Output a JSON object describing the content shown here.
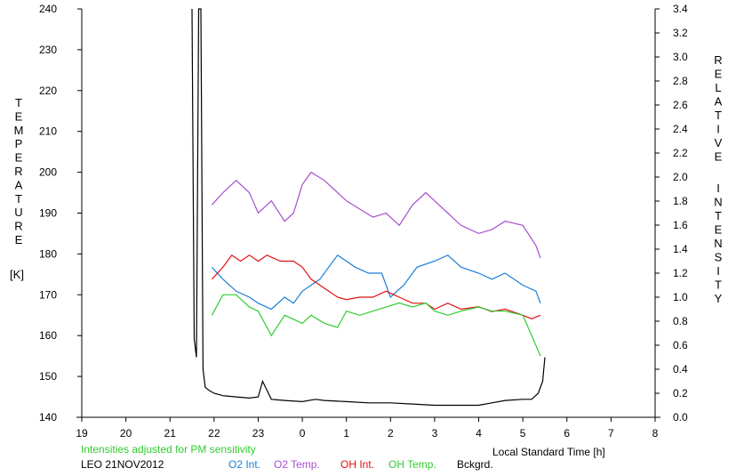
{
  "chart_data": {
    "type": "line",
    "left_axis": {
      "label_letters": [
        "T",
        "E",
        "M",
        "P",
        "E",
        "R",
        "A",
        "T",
        "U",
        "R",
        "E"
      ],
      "unit": "[K]",
      "range": [
        140,
        240
      ],
      "ticks": [
        "140",
        "150",
        "160",
        "170",
        "180",
        "190",
        "200",
        "210",
        "220",
        "230",
        "240"
      ]
    },
    "right_axis": {
      "label_letters": [
        "R",
        "E",
        "L",
        "A",
        "T",
        "I",
        "V",
        "E"
      ],
      "label_letters2": [
        "I",
        "N",
        "T",
        "E",
        "N",
        "S",
        "I",
        "T",
        "Y"
      ],
      "range": [
        0.0,
        3.4
      ],
      "ticks": [
        "0.0",
        "0.2",
        "0.4",
        "0.6",
        "0.8",
        "1.0",
        "1.2",
        "1.4",
        "1.6",
        "1.8",
        "2.0",
        "2.2",
        "2.4",
        "2.6",
        "2.8",
        "3.0",
        "3.2",
        "3.4"
      ]
    },
    "x_axis": {
      "label": "Local Standard Time [h]",
      "range": [
        19,
        32
      ],
      "ticks": [
        "19",
        "20",
        "21",
        "22",
        "23",
        "0",
        "1",
        "2",
        "3",
        "4",
        "5",
        "6",
        "7",
        "8"
      ]
    },
    "note": "Intensities adjusted for PM sensitivity",
    "station": "LEO 21NOV2012",
    "legend": [
      {
        "name": "O2 Int.",
        "color": "#1a7fd6"
      },
      {
        "name": "O2 Temp.",
        "color": "#a64fd0"
      },
      {
        "name": "OH Int.",
        "color": "#e01010"
      },
      {
        "name": "OH Temp.",
        "color": "#30cc30"
      },
      {
        "name": "Bckgrd.",
        "color": "#000000"
      }
    ],
    "series": [
      {
        "name": "O2 Int.",
        "axis": "right",
        "color": "#1a7fd6",
        "x": [
          21.95,
          22.2,
          22.5,
          22.8,
          23.0,
          23.3,
          23.6,
          23.8,
          24.0,
          24.2,
          24.4,
          24.6,
          24.8,
          25.0,
          25.2,
          25.5,
          25.8,
          26.0,
          26.3,
          26.6,
          27.0,
          27.3,
          27.6,
          28.0,
          28.3,
          28.6,
          29.0,
          29.3,
          29.4
        ],
        "y": [
          1.25,
          1.15,
          1.05,
          1.0,
          0.95,
          0.9,
          1.0,
          0.95,
          1.05,
          1.1,
          1.15,
          1.25,
          1.35,
          1.3,
          1.25,
          1.2,
          1.2,
          1.0,
          1.1,
          1.25,
          1.3,
          1.35,
          1.25,
          1.2,
          1.15,
          1.2,
          1.1,
          1.05,
          0.95
        ]
      },
      {
        "name": "O2 Temp.",
        "axis": "left",
        "color": "#a64fd0",
        "x": [
          21.95,
          22.2,
          22.5,
          22.8,
          23.0,
          23.3,
          23.6,
          23.8,
          24.0,
          24.2,
          24.5,
          24.8,
          25.0,
          25.3,
          25.6,
          25.9,
          26.2,
          26.5,
          26.8,
          27.0,
          27.3,
          27.6,
          28.0,
          28.3,
          28.6,
          29.0,
          29.3,
          29.4
        ],
        "y": [
          192,
          195,
          198,
          195,
          190,
          193,
          188,
          190,
          197,
          200,
          198,
          195,
          193,
          191,
          189,
          190,
          187,
          192,
          195,
          193,
          190,
          187,
          185,
          186,
          188,
          187,
          182,
          179
        ]
      },
      {
        "name": "OH Int.",
        "axis": "right",
        "color": "#e01010",
        "x": [
          21.95,
          22.2,
          22.4,
          22.6,
          22.8,
          23.0,
          23.2,
          23.5,
          23.8,
          24.0,
          24.2,
          24.4,
          24.6,
          24.8,
          25.0,
          25.3,
          25.6,
          25.9,
          26.2,
          26.5,
          26.8,
          27.0,
          27.3,
          27.6,
          28.0,
          28.3,
          28.6,
          29.0,
          29.2,
          29.4
        ],
        "y": [
          1.15,
          1.25,
          1.35,
          1.3,
          1.35,
          1.3,
          1.35,
          1.3,
          1.3,
          1.25,
          1.15,
          1.1,
          1.05,
          1.0,
          0.98,
          1.0,
          1.0,
          1.05,
          1.0,
          0.95,
          0.95,
          0.9,
          0.95,
          0.9,
          0.92,
          0.88,
          0.9,
          0.85,
          0.82,
          0.85
        ]
      },
      {
        "name": "OH Temp.",
        "axis": "left",
        "color": "#30cc30",
        "x": [
          21.95,
          22.2,
          22.5,
          22.8,
          23.0,
          23.3,
          23.6,
          23.8,
          24.0,
          24.2,
          24.5,
          24.8,
          25.0,
          25.3,
          25.6,
          25.9,
          26.2,
          26.5,
          26.8,
          27.0,
          27.3,
          27.6,
          28.0,
          28.3,
          28.6,
          29.0,
          29.2,
          29.4
        ],
        "y": [
          165,
          170,
          170,
          167,
          166,
          160,
          165,
          164,
          163,
          165,
          163,
          162,
          166,
          165,
          166,
          167,
          168,
          167,
          168,
          166,
          165,
          166,
          167,
          166,
          166,
          165,
          160,
          155
        ]
      },
      {
        "name": "Bckgrd.",
        "axis": "right",
        "color": "#000000",
        "x": [
          21.5,
          21.55,
          21.6,
          21.65,
          21.7,
          21.75,
          21.8,
          21.9,
          22.0,
          22.2,
          22.5,
          22.8,
          23.0,
          23.1,
          23.3,
          23.6,
          24.0,
          24.3,
          24.5,
          25.0,
          25.5,
          26.0,
          26.5,
          27.0,
          27.5,
          28.0,
          28.3,
          28.6,
          29.0,
          29.2,
          29.35,
          29.45,
          29.5
        ],
        "y": [
          3.4,
          0.65,
          0.5,
          3.4,
          3.4,
          0.4,
          0.25,
          0.22,
          0.2,
          0.18,
          0.17,
          0.16,
          0.17,
          0.3,
          0.15,
          0.14,
          0.13,
          0.15,
          0.14,
          0.13,
          0.12,
          0.12,
          0.11,
          0.1,
          0.1,
          0.1,
          0.12,
          0.14,
          0.15,
          0.15,
          0.2,
          0.3,
          0.5
        ]
      }
    ]
  }
}
